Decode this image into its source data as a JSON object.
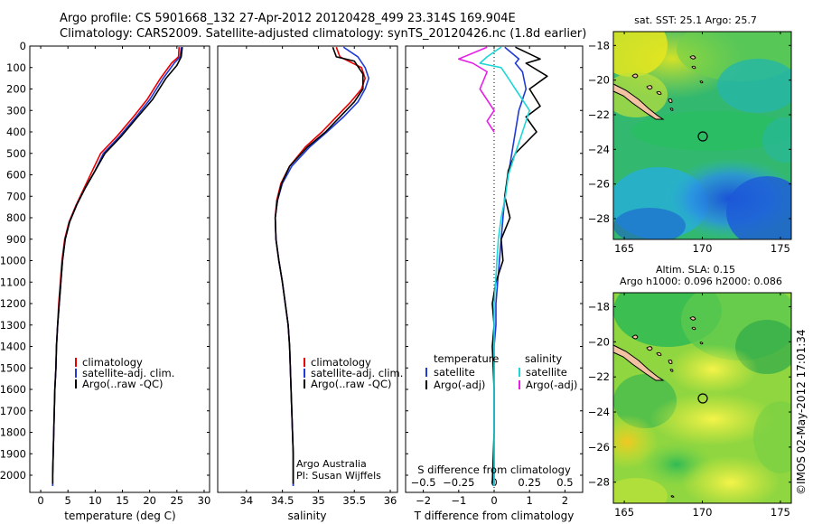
{
  "header": {
    "line1": "Argo profile: CS 5901668_132 27-Apr-2012 20120428_499 23.314S 169.904E",
    "line2": "Climatology: CARS2009. Satellite-adjusted climatology: synTS_20120426.nc (1.8d earlier)"
  },
  "side_stamp": "©IMOS 02-May-2012 17:01:34",
  "colors": {
    "clim": "#e60000",
    "sat": "#1f3ad6",
    "argo": "#000000",
    "sat_sal": "#1fd6d6",
    "argo_sal": "#e61fe6"
  },
  "chart_data": [
    {
      "type": "line",
      "id": "temperature",
      "xlabel": "temperature (deg C)",
      "ylabel": "",
      "xlim": [
        -2,
        31
      ],
      "ylim": [
        0,
        2080
      ],
      "xticks": [
        0,
        5,
        10,
        15,
        20,
        25,
        30
      ],
      "yticks": [
        0,
        100,
        200,
        300,
        400,
        500,
        600,
        700,
        800,
        900,
        1000,
        1100,
        1200,
        1300,
        1400,
        1500,
        1600,
        1700,
        1800,
        1900,
        2000
      ],
      "legend": [
        "climatology",
        "satellite-adj. clim.",
        "Argo(..raw -QC)"
      ],
      "series": [
        {
          "name": "climatology",
          "color": "clim",
          "points": [
            [
              25.4,
              5
            ],
            [
              25.3,
              50
            ],
            [
              24,
              80
            ],
            [
              22,
              150
            ],
            [
              19.5,
              250
            ],
            [
              17,
              330
            ],
            [
              14,
              420
            ],
            [
              11,
              500
            ],
            [
              9.5,
              580
            ],
            [
              8,
              660
            ],
            [
              6.5,
              740
            ],
            [
              5.2,
              820
            ],
            [
              4.4,
              900
            ],
            [
              3.9,
              1000
            ],
            [
              3.6,
              1100
            ],
            [
              3.3,
              1200
            ],
            [
              3.1,
              1300
            ],
            [
              2.9,
              1400
            ],
            [
              2.8,
              1500
            ],
            [
              2.6,
              1600
            ],
            [
              2.5,
              1700
            ],
            [
              2.4,
              1800
            ],
            [
              2.3,
              1900
            ],
            [
              2.2,
              2000
            ],
            [
              2.2,
              2050
            ]
          ]
        },
        {
          "name": "satellite-adj. clim.",
          "color": "sat",
          "points": [
            [
              25.8,
              5
            ],
            [
              25.6,
              50
            ],
            [
              24.5,
              80
            ],
            [
              22.5,
              150
            ],
            [
              20,
              250
            ],
            [
              17.5,
              330
            ],
            [
              14.5,
              420
            ],
            [
              11.5,
              500
            ],
            [
              10,
              580
            ],
            [
              8.2,
              660
            ],
            [
              6.6,
              740
            ],
            [
              5.3,
              820
            ],
            [
              4.5,
              900
            ],
            [
              4,
              1000
            ],
            [
              3.7,
              1100
            ],
            [
              3.4,
              1200
            ],
            [
              3.1,
              1300
            ],
            [
              2.9,
              1400
            ],
            [
              2.8,
              1500
            ],
            [
              2.6,
              1600
            ],
            [
              2.5,
              1700
            ],
            [
              2.4,
              1800
            ],
            [
              2.3,
              1900
            ],
            [
              2.2,
              2000
            ],
            [
              2.2,
              2050
            ]
          ]
        },
        {
          "name": "Argo(..raw -QC)",
          "color": "argo",
          "points": [
            [
              26,
              5
            ],
            [
              25.8,
              50
            ],
            [
              25,
              90
            ],
            [
              23,
              150
            ],
            [
              20.5,
              250
            ],
            [
              17.8,
              330
            ],
            [
              14.8,
              420
            ],
            [
              11.8,
              500
            ],
            [
              10,
              580
            ],
            [
              8.2,
              660
            ],
            [
              6.6,
              740
            ],
            [
              5.3,
              820
            ],
            [
              4.5,
              900
            ],
            [
              4,
              1000
            ],
            [
              3.7,
              1100
            ],
            [
              3.4,
              1200
            ],
            [
              3.1,
              1300
            ],
            [
              2.9,
              1400
            ],
            [
              2.8,
              1500
            ],
            [
              2.6,
              1600
            ],
            [
              2.5,
              1700
            ],
            [
              2.4,
              1800
            ],
            [
              2.3,
              1900
            ],
            [
              2.2,
              2000
            ],
            [
              2.2,
              2040
            ]
          ]
        }
      ]
    },
    {
      "type": "line",
      "id": "salinity",
      "xlabel": "salinity",
      "xlim": [
        33.6,
        36.1
      ],
      "ylim": [
        0,
        2080
      ],
      "xticks": [
        34,
        34.5,
        35,
        35.5,
        36
      ],
      "legend": [
        "climatology",
        "satellite-adj. clim.",
        "Argo(..raw -QC)"
      ],
      "annotation": [
        "Argo Australia",
        "PI: Susan Wijffels"
      ],
      "series": [
        {
          "name": "climatology",
          "color": "clim",
          "points": [
            [
              35.25,
              5
            ],
            [
              35.3,
              50
            ],
            [
              35.6,
              100
            ],
            [
              35.65,
              150
            ],
            [
              35.6,
              200
            ],
            [
              35.45,
              260
            ],
            [
              35.25,
              330
            ],
            [
              35.05,
              400
            ],
            [
              34.82,
              470
            ],
            [
              34.6,
              560
            ],
            [
              34.48,
              640
            ],
            [
              34.42,
              720
            ],
            [
              34.4,
              800
            ],
            [
              34.41,
              900
            ],
            [
              34.45,
              1000
            ],
            [
              34.5,
              1100
            ],
            [
              34.54,
              1200
            ],
            [
              34.58,
              1300
            ],
            [
              34.6,
              1400
            ],
            [
              34.61,
              1500
            ],
            [
              34.62,
              1600
            ],
            [
              34.63,
              1700
            ],
            [
              34.64,
              1800
            ],
            [
              34.65,
              1900
            ],
            [
              34.65,
              2000
            ],
            [
              34.65,
              2050
            ]
          ]
        },
        {
          "name": "satellite-adj. clim.",
          "color": "sat",
          "points": [
            [
              35.35,
              5
            ],
            [
              35.55,
              50
            ],
            [
              35.65,
              100
            ],
            [
              35.7,
              150
            ],
            [
              35.65,
              200
            ],
            [
              35.55,
              260
            ],
            [
              35.35,
              330
            ],
            [
              35.12,
              400
            ],
            [
              34.88,
              470
            ],
            [
              34.63,
              560
            ],
            [
              34.5,
              640
            ],
            [
              34.43,
              720
            ],
            [
              34.4,
              800
            ],
            [
              34.41,
              900
            ],
            [
              34.45,
              1000
            ],
            [
              34.5,
              1100
            ],
            [
              34.54,
              1200
            ],
            [
              34.58,
              1300
            ],
            [
              34.6,
              1400
            ],
            [
              34.61,
              1500
            ],
            [
              34.62,
              1600
            ],
            [
              34.63,
              1700
            ],
            [
              34.64,
              1800
            ],
            [
              34.65,
              1900
            ],
            [
              34.65,
              2000
            ],
            [
              34.65,
              2050
            ]
          ]
        },
        {
          "name": "Argo(..raw -QC)",
          "color": "argo",
          "points": [
            [
              35.2,
              5
            ],
            [
              35.25,
              50
            ],
            [
              35.5,
              70
            ],
            [
              35.62,
              130
            ],
            [
              35.62,
              200
            ],
            [
              35.5,
              260
            ],
            [
              35.3,
              330
            ],
            [
              35.1,
              400
            ],
            [
              34.85,
              470
            ],
            [
              34.6,
              560
            ],
            [
              34.49,
              640
            ],
            [
              34.43,
              720
            ],
            [
              34.4,
              800
            ],
            [
              34.41,
              900
            ],
            [
              34.45,
              1000
            ],
            [
              34.5,
              1100
            ],
            [
              34.54,
              1200
            ],
            [
              34.58,
              1300
            ],
            [
              34.6,
              1400
            ],
            [
              34.61,
              1500
            ],
            [
              34.62,
              1600
            ],
            [
              34.63,
              1700
            ],
            [
              34.64,
              1800
            ],
            [
              34.65,
              1900
            ],
            [
              34.65,
              2000
            ],
            [
              34.65,
              2040
            ]
          ]
        }
      ]
    },
    {
      "type": "line",
      "id": "difference",
      "xlabel": "T difference from climatology",
      "xlabel_top": "S difference from climatology",
      "xlim": [
        -2.5,
        2.5
      ],
      "ylim": [
        0,
        2080
      ],
      "xticks": [
        -2,
        -1,
        0,
        1,
        2
      ],
      "xtick_labels": [
        "−2",
        "−1",
        "0",
        "1",
        "2"
      ],
      "s_xticks": [
        -0.5,
        -0.25,
        0,
        0.25,
        0.5
      ],
      "s_xtick_labels": [
        "−0.5",
        "−0.25",
        "0",
        "0.25",
        "0.5"
      ],
      "legend_left_title": "temperature",
      "legend_right_title": "salinity",
      "legend_left": [
        "satellite",
        "Argo(-adj)"
      ],
      "legend_right": [
        "satellite",
        "Argo(-adj)"
      ],
      "series": [
        {
          "name": "temperature satellite",
          "color": "sat",
          "points": [
            [
              0.3,
              5
            ],
            [
              0.7,
              60
            ],
            [
              0.6,
              80
            ],
            [
              0.8,
              120
            ],
            [
              0.9,
              200
            ],
            [
              0.7,
              300
            ],
            [
              0.6,
              400
            ],
            [
              0.5,
              500
            ],
            [
              0.4,
              600
            ],
            [
              0.3,
              700
            ],
            [
              0.25,
              800
            ],
            [
              0.2,
              900
            ],
            [
              0.15,
              1000
            ],
            [
              0.1,
              1100
            ],
            [
              0.05,
              1200
            ],
            [
              0.05,
              1300
            ],
            [
              0,
              1400
            ],
            [
              0,
              1600
            ],
            [
              0,
              1800
            ],
            [
              0,
              2050
            ]
          ]
        },
        {
          "name": "temperature Argo(-adj)",
          "color": "argo",
          "points": [
            [
              0.6,
              5
            ],
            [
              1.3,
              60
            ],
            [
              0.9,
              80
            ],
            [
              1.5,
              140
            ],
            [
              1,
              200
            ],
            [
              1.3,
              280
            ],
            [
              0.9,
              330
            ],
            [
              1.2,
              400
            ],
            [
              0.6,
              500
            ],
            [
              0.4,
              580
            ],
            [
              0.3,
              700
            ],
            [
              0.45,
              800
            ],
            [
              0.2,
              900
            ],
            [
              0.25,
              1000
            ],
            [
              0.05,
              1100
            ],
            [
              -0.05,
              1200
            ],
            [
              0,
              1300
            ],
            [
              -0.05,
              1400
            ],
            [
              0,
              1600
            ],
            [
              0,
              1800
            ],
            [
              -0.05,
              2040
            ]
          ]
        },
        {
          "name": "salinity satellite",
          "color": "sat_sal",
          "points": [
            [
              0.05,
              5
            ],
            [
              -0.05,
              50
            ],
            [
              -0.1,
              80
            ],
            [
              0.05,
              100
            ],
            [
              0.1,
              150
            ],
            [
              0.15,
              200
            ],
            [
              0.25,
              300
            ],
            [
              0.2,
              400
            ],
            [
              0.15,
              500
            ],
            [
              0.1,
              600
            ],
            [
              0.08,
              700
            ],
            [
              0.05,
              800
            ],
            [
              0.03,
              900
            ],
            [
              0.02,
              1000
            ],
            [
              0.01,
              1100
            ],
            [
              0,
              1200
            ],
            [
              0,
              1400
            ],
            [
              0,
              1600
            ],
            [
              0,
              1800
            ],
            [
              0,
              2050
            ]
          ]
        },
        {
          "name": "salinity Argo(-adj)",
          "color": "argo_sal",
          "points": [
            [
              -0.05,
              5
            ],
            [
              -0.25,
              60
            ],
            [
              -0.15,
              80
            ],
            [
              -0.05,
              120
            ],
            [
              -0.1,
              200
            ],
            [
              0,
              300
            ],
            [
              -0.05,
              350
            ],
            [
              0,
              400
            ]
          ]
        }
      ]
    },
    {
      "type": "heatmap",
      "id": "sst_map",
      "title": "sat. SST: 25.1  Argo: 25.7",
      "xlim": [
        164.3,
        175.7
      ],
      "ylim": [
        -29.2,
        -17.2
      ],
      "xticks": [
        165,
        170,
        175
      ],
      "yticks": [
        -18,
        -20,
        -22,
        -24,
        -26,
        -28
      ],
      "ytick_labels": [
        "−18",
        "−20",
        "−22",
        "−24",
        "−26",
        "−28"
      ],
      "marker": {
        "lon": 169.904,
        "lat": -23.314
      }
    },
    {
      "type": "heatmap",
      "id": "sla_map",
      "title": "Altim. SLA: 0.15",
      "subtitle": "Argo h1000: 0.096  h2000: 0.086",
      "xlim": [
        164.3,
        175.7
      ],
      "ylim": [
        -29.2,
        -17.2
      ],
      "xticks": [
        165,
        170,
        175
      ],
      "yticks": [
        -18,
        -20,
        -22,
        -24,
        -26,
        -28
      ],
      "ytick_labels": [
        "−18",
        "−20",
        "−22",
        "−24",
        "−26",
        "−28"
      ],
      "marker": {
        "lon": 169.904,
        "lat": -23.314
      }
    }
  ]
}
